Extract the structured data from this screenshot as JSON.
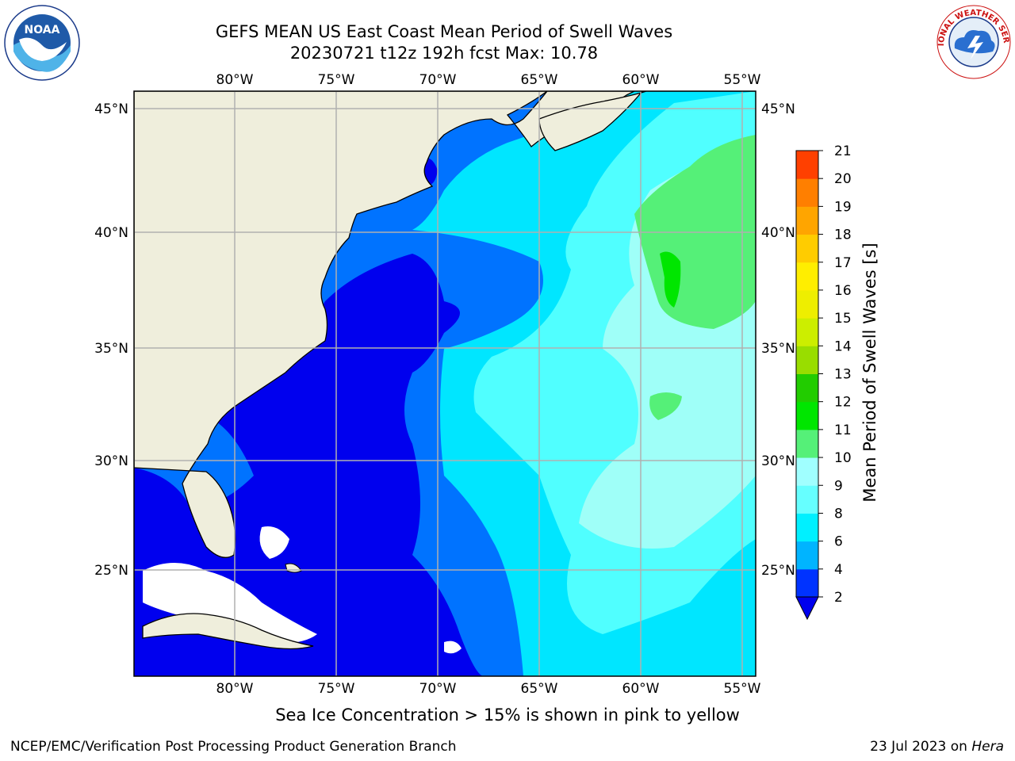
{
  "title": {
    "line1": "GEFS MEAN US East Coast Mean Period of Swell Waves",
    "line2": "20230721 t12z 192h fcst   Max: 10.78"
  },
  "logos": {
    "left": {
      "text": "NOAA",
      "icon": "noaa-logo"
    },
    "right": {
      "text": "NATIONAL WEATHER SERVICE",
      "icon": "nws-logo"
    }
  },
  "map": {
    "lon_labels": [
      "80°W",
      "75°W",
      "70°W",
      "65°W",
      "60°W",
      "55°W"
    ],
    "lat_labels": [
      "45°N",
      "40°N",
      "35°N",
      "30°N",
      "25°N"
    ],
    "lon_range": [
      -85,
      -54.5
    ],
    "lat_range": [
      20.5,
      46
    ],
    "land_color": "#efeedc",
    "grid_color": "#b0b0b0"
  },
  "colorbar": {
    "label": "Mean Period of Swell Waves [s]",
    "ticks": [
      "2",
      "4",
      "6",
      "8",
      "9",
      "10",
      "11",
      "12",
      "13",
      "14",
      "15",
      "16",
      "17",
      "18",
      "19",
      "20",
      "21"
    ],
    "colors": [
      "#0033ff",
      "#00b4ff",
      "#00f0ff",
      "#66ffff",
      "#a0ffff",
      "#55f078",
      "#00e600",
      "#22cc00",
      "#99dd00",
      "#ccee00",
      "#eeee00",
      "#ffee00",
      "#ffcc00",
      "#ffa500",
      "#ff7f00",
      "#ff4000",
      "#ff0000"
    ],
    "extend_color": "#0000ee"
  },
  "note": "Sea Ice Concentration > 15% is shown in pink to yellow",
  "footer": {
    "left": "NCEP/EMC/Verification Post Processing Product Generation Branch",
    "right_date": "23 Jul 2023 on ",
    "right_host": "Hera"
  }
}
